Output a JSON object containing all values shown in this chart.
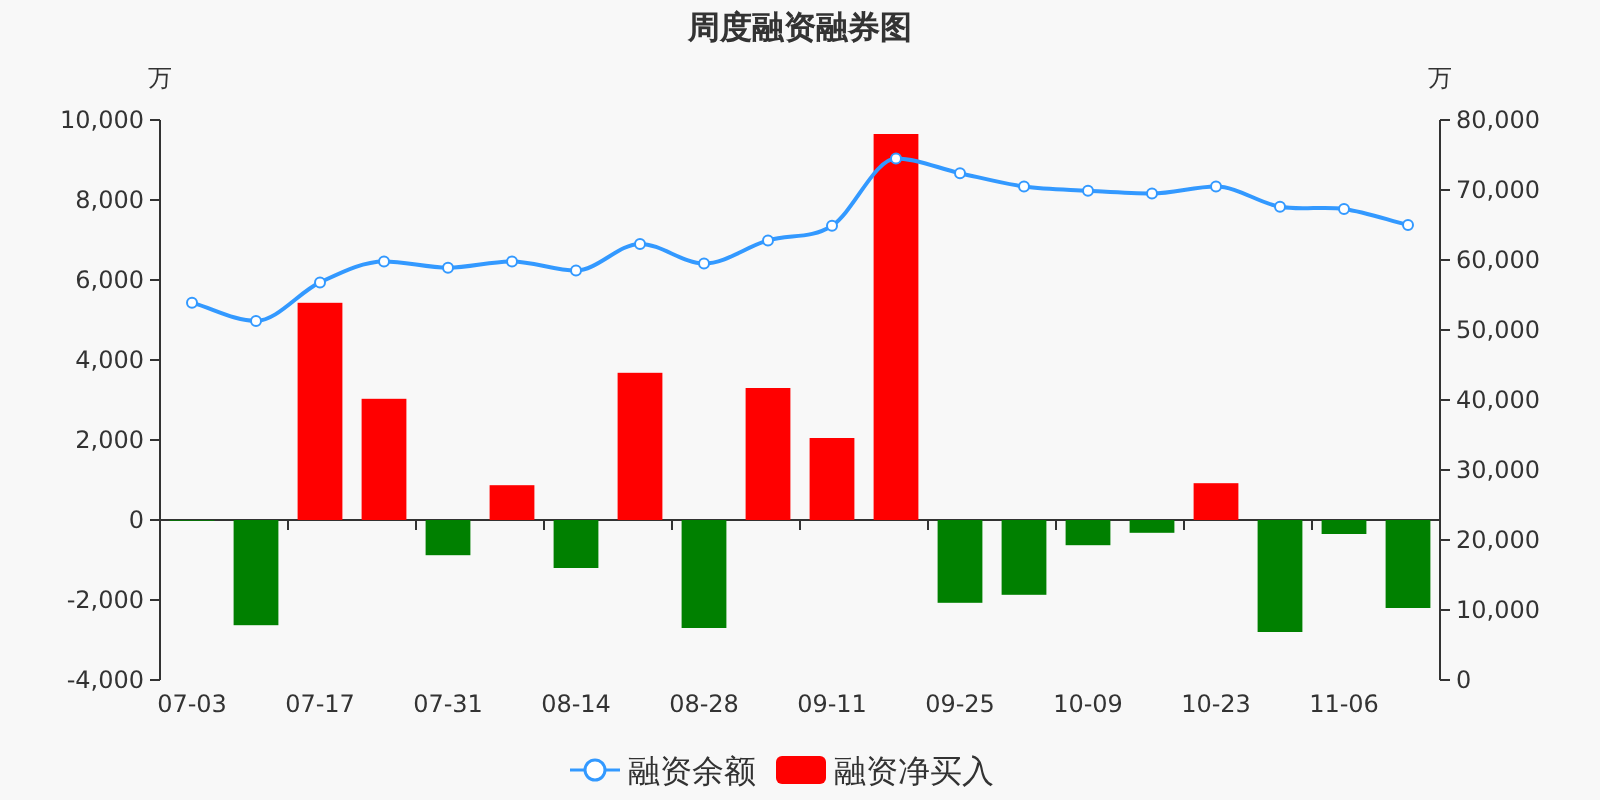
{
  "chart_data": {
    "type": "bar",
    "title": "周度融资融券图",
    "ylabel": "万",
    "y2label": "万",
    "categories": [
      "07-03",
      null,
      "07-17",
      null,
      "07-31",
      null,
      "08-14",
      null,
      "08-28",
      null,
      "09-11",
      null,
      "09-25",
      null,
      "10-09",
      null,
      "10-23",
      null,
      "11-06",
      null
    ],
    "series": [
      {
        "name": "融资余额",
        "type": "line",
        "axis": "y2",
        "color": "#3399ff",
        "marker": "circle",
        "values": [
          53900,
          51300,
          56800,
          59800,
          58900,
          59800,
          58500,
          62300,
          59500,
          62800,
          64900,
          74500,
          72400,
          70500,
          69900,
          69500,
          70500,
          67600,
          67300,
          65000
        ]
      },
      {
        "name": "融资净买入",
        "color": "#ff0000",
        "colors": [
          "#008000",
          "#008000",
          "#ff0000",
          "#ff0000",
          "#008000",
          "#ff0000",
          "#008000",
          "#ff0000",
          "#008000",
          "#ff0000",
          "#ff0000",
          "#ff0000",
          "#008000",
          "#008000",
          "#008000",
          "#008000",
          "#ff0000",
          "#008000",
          "#008000",
          "#008000"
        ],
        "values": [
          -20,
          -2630,
          5430,
          3030,
          -880,
          870,
          -1200,
          3680,
          -2700,
          3300,
          2050,
          9650,
          -2070,
          -1870,
          -630,
          -320,
          920,
          -2800,
          -350,
          -2200
        ]
      }
    ],
    "ylim": [
      -4000,
      10000
    ],
    "yticks": [
      {
        "value": -4000,
        "label": "-4,000"
      },
      {
        "value": -2000,
        "label": "-2,000"
      },
      0,
      {
        "value": 2000,
        "label": "2,000"
      },
      {
        "value": 4000,
        "label": "4,000"
      },
      {
        "value": 6000,
        "label": "6,000"
      },
      {
        "value": 8000,
        "label": "8,000"
      },
      {
        "value": 10000,
        "label": "10,000"
      }
    ],
    "y2lim": [
      0,
      80000
    ],
    "y2ticks": [
      0,
      {
        "value": 10000,
        "label": "10,000"
      },
      {
        "value": 20000,
        "label": "20,000"
      },
      {
        "value": 30000,
        "label": "30,000"
      },
      {
        "value": 40000,
        "label": "40,000"
      },
      {
        "value": 50000,
        "label": "50,000"
      },
      {
        "value": 60000,
        "label": "60,000"
      },
      {
        "value": 70000,
        "label": "70,000"
      },
      {
        "value": 80000,
        "label": "80,000"
      }
    ],
    "legend": "bottom"
  }
}
